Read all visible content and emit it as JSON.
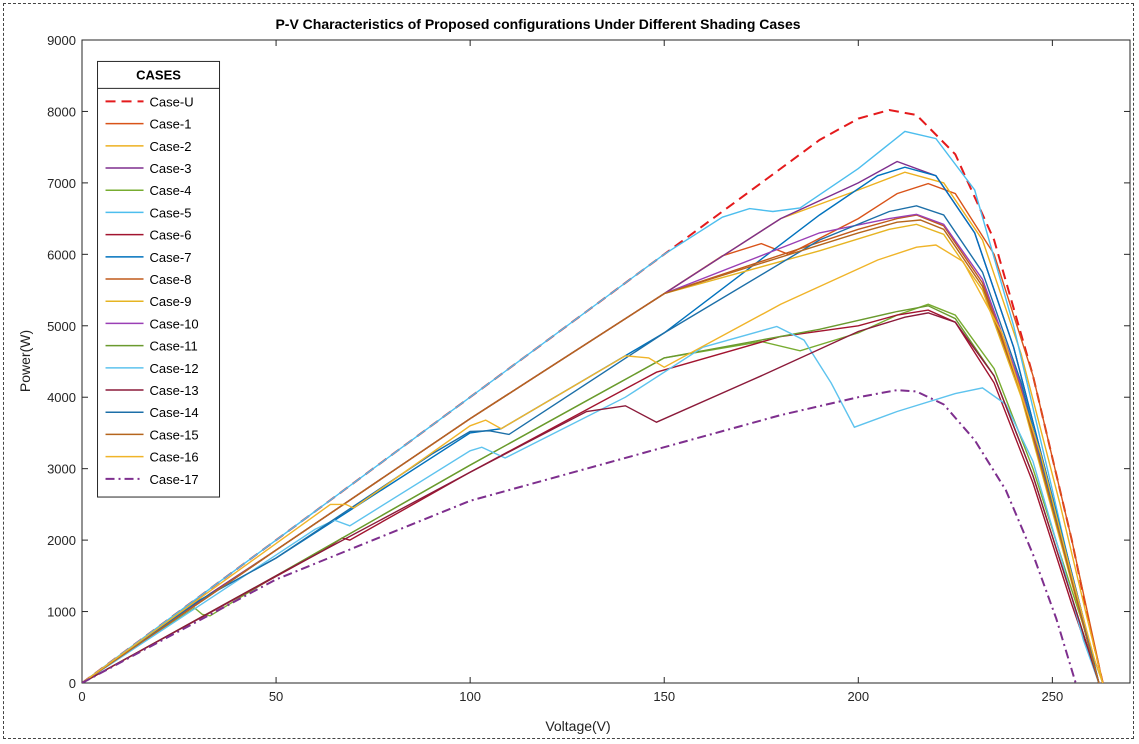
{
  "chart_data": {
    "type": "line",
    "title": "P-V Characteristics of Proposed configurations Under Different Shading Cases",
    "xlabel": "Voltage(V)",
    "ylabel": "Power(W)",
    "xlim": [
      0,
      270
    ],
    "ylim": [
      0,
      9000
    ],
    "x_ticks": [
      0,
      50,
      100,
      150,
      200,
      250
    ],
    "y_ticks": [
      0,
      1000,
      2000,
      3000,
      4000,
      5000,
      6000,
      7000,
      8000,
      9000
    ],
    "grid": false,
    "legend": {
      "title": "CASES",
      "placement": "top-left"
    },
    "series": [
      {
        "name": "Case-U",
        "color": "#e41a1c",
        "style": "dashed",
        "points": [
          [
            0,
            0
          ],
          [
            50,
            2000
          ],
          [
            100,
            4000
          ],
          [
            150,
            6000
          ],
          [
            175,
            7000
          ],
          [
            190,
            7600
          ],
          [
            200,
            7900
          ],
          [
            208,
            8020
          ],
          [
            215,
            7950
          ],
          [
            225,
            7400
          ],
          [
            235,
            6200
          ],
          [
            245,
            4300
          ],
          [
            255,
            2000
          ],
          [
            260,
            700
          ],
          [
            263,
            0
          ]
        ]
      },
      {
        "name": "Case-1",
        "color": "#d95319",
        "style": "solid",
        "points": [
          [
            0,
            0
          ],
          [
            30,
            1180
          ],
          [
            31,
            1150
          ],
          [
            50,
            1860
          ],
          [
            100,
            3700
          ],
          [
            150,
            5450
          ],
          [
            165,
            5980
          ],
          [
            175,
            6150
          ],
          [
            182,
            6000
          ],
          [
            200,
            6500
          ],
          [
            210,
            6850
          ],
          [
            218,
            6990
          ],
          [
            225,
            6850
          ],
          [
            235,
            6000
          ],
          [
            245,
            4300
          ],
          [
            255,
            2000
          ],
          [
            261,
            500
          ],
          [
            263,
            0
          ]
        ]
      },
      {
        "name": "Case-2",
        "color": "#edb120",
        "style": "solid",
        "points": [
          [
            0,
            0
          ],
          [
            33,
            1250
          ],
          [
            50,
            1860
          ],
          [
            100,
            3700
          ],
          [
            150,
            5450
          ],
          [
            180,
            6500
          ],
          [
            200,
            6900
          ],
          [
            212,
            7150
          ],
          [
            222,
            7000
          ],
          [
            232,
            6200
          ],
          [
            242,
            4600
          ],
          [
            252,
            2500
          ],
          [
            259,
            900
          ],
          [
            263,
            0
          ]
        ]
      },
      {
        "name": "Case-3",
        "color": "#7e2f8e",
        "style": "solid",
        "points": [
          [
            0,
            0
          ],
          [
            33,
            1250
          ],
          [
            50,
            1860
          ],
          [
            100,
            3700
          ],
          [
            150,
            5450
          ],
          [
            180,
            6500
          ],
          [
            200,
            7000
          ],
          [
            210,
            7300
          ],
          [
            220,
            7100
          ],
          [
            230,
            6300
          ],
          [
            240,
            4700
          ],
          [
            250,
            2600
          ],
          [
            258,
            900
          ],
          [
            262,
            0
          ]
        ]
      },
      {
        "name": "Case-4",
        "color": "#77ac30",
        "style": "solid",
        "points": [
          [
            0,
            0
          ],
          [
            29,
            1050
          ],
          [
            31,
            960
          ],
          [
            33,
            940
          ],
          [
            50,
            1500
          ],
          [
            100,
            3050
          ],
          [
            130,
            3950
          ],
          [
            150,
            4550
          ],
          [
            175,
            4780
          ],
          [
            185,
            4650
          ],
          [
            200,
            4900
          ],
          [
            210,
            5150
          ],
          [
            218,
            5300
          ],
          [
            225,
            5150
          ],
          [
            235,
            4400
          ],
          [
            245,
            3000
          ],
          [
            255,
            1300
          ],
          [
            261,
            300
          ],
          [
            263,
            0
          ]
        ]
      },
      {
        "name": "Case-5",
        "color": "#4dbeee",
        "style": "solid",
        "points": [
          [
            0,
            0
          ],
          [
            60,
            2400
          ],
          [
            100,
            4000
          ],
          [
            150,
            6000
          ],
          [
            165,
            6520
          ],
          [
            172,
            6640
          ],
          [
            178,
            6600
          ],
          [
            185,
            6650
          ],
          [
            200,
            7200
          ],
          [
            212,
            7720
          ],
          [
            220,
            7620
          ],
          [
            230,
            6900
          ],
          [
            240,
            5000
          ],
          [
            250,
            2700
          ],
          [
            258,
            800
          ],
          [
            262,
            0
          ]
        ]
      },
      {
        "name": "Case-6",
        "color": "#a2142f",
        "style": "solid",
        "points": [
          [
            0,
            0
          ],
          [
            62,
            1850
          ],
          [
            67,
            2030
          ],
          [
            69,
            2000
          ],
          [
            100,
            2950
          ],
          [
            148,
            4350
          ],
          [
            180,
            4850
          ],
          [
            200,
            5000
          ],
          [
            210,
            5150
          ],
          [
            218,
            5220
          ],
          [
            225,
            5050
          ],
          [
            235,
            4200
          ],
          [
            245,
            2800
          ],
          [
            255,
            1100
          ],
          [
            262,
            0
          ]
        ]
      },
      {
        "name": "Case-7",
        "color": "#0072bd",
        "style": "solid",
        "points": [
          [
            0,
            0
          ],
          [
            30,
            1150
          ],
          [
            50,
            1750
          ],
          [
            100,
            3500
          ],
          [
            108,
            3560
          ],
          [
            150,
            4900
          ],
          [
            190,
            6550
          ],
          [
            205,
            7100
          ],
          [
            212,
            7220
          ],
          [
            220,
            7100
          ],
          [
            230,
            6300
          ],
          [
            240,
            4700
          ],
          [
            250,
            2600
          ],
          [
            258,
            900
          ],
          [
            262,
            0
          ]
        ]
      },
      {
        "name": "Case-8",
        "color": "#c15a1b",
        "style": "solid",
        "points": [
          [
            0,
            0
          ],
          [
            50,
            1860
          ],
          [
            100,
            3700
          ],
          [
            150,
            5450
          ],
          [
            200,
            6350
          ],
          [
            210,
            6500
          ],
          [
            215,
            6550
          ],
          [
            222,
            6400
          ],
          [
            232,
            5600
          ],
          [
            242,
            4100
          ],
          [
            252,
            2100
          ],
          [
            259,
            600
          ],
          [
            262,
            0
          ]
        ]
      },
      {
        "name": "Case-9",
        "color": "#e6b422",
        "style": "solid",
        "points": [
          [
            0,
            0
          ],
          [
            50,
            1860
          ],
          [
            100,
            3700
          ],
          [
            150,
            5450
          ],
          [
            190,
            6050
          ],
          [
            208,
            6350
          ],
          [
            215,
            6420
          ],
          [
            222,
            6280
          ],
          [
            232,
            5500
          ],
          [
            242,
            4000
          ],
          [
            252,
            2000
          ],
          [
            259,
            600
          ],
          [
            262,
            0
          ]
        ]
      },
      {
        "name": "Case-10",
        "color": "#9a3fb5",
        "style": "solid",
        "points": [
          [
            0,
            0
          ],
          [
            50,
            1860
          ],
          [
            100,
            3700
          ],
          [
            150,
            5450
          ],
          [
            190,
            6300
          ],
          [
            208,
            6500
          ],
          [
            215,
            6560
          ],
          [
            222,
            6420
          ],
          [
            232,
            5650
          ],
          [
            242,
            4150
          ],
          [
            252,
            2100
          ],
          [
            259,
            600
          ],
          [
            262,
            0
          ]
        ]
      },
      {
        "name": "Case-11",
        "color": "#6a9a2e",
        "style": "solid",
        "points": [
          [
            0,
            0
          ],
          [
            50,
            1500
          ],
          [
            100,
            3050
          ],
          [
            130,
            3950
          ],
          [
            150,
            4550
          ],
          [
            190,
            4950
          ],
          [
            210,
            5200
          ],
          [
            218,
            5280
          ],
          [
            225,
            5100
          ],
          [
            235,
            4300
          ],
          [
            245,
            2900
          ],
          [
            255,
            1200
          ],
          [
            262,
            0
          ]
        ]
      },
      {
        "name": "Case-12",
        "color": "#5ec3ee",
        "style": "solid",
        "points": [
          [
            0,
            0
          ],
          [
            60,
            2150
          ],
          [
            65,
            2280
          ],
          [
            69,
            2200
          ],
          [
            100,
            3250
          ],
          [
            103,
            3300
          ],
          [
            109,
            3150
          ],
          [
            140,
            4000
          ],
          [
            160,
            4700
          ],
          [
            179,
            4990
          ],
          [
            186,
            4800
          ],
          [
            193,
            4200
          ],
          [
            199,
            3580
          ],
          [
            210,
            3800
          ],
          [
            225,
            4050
          ],
          [
            232,
            4130
          ],
          [
            238,
            3900
          ],
          [
            245,
            3100
          ],
          [
            252,
            1800
          ],
          [
            258,
            600
          ],
          [
            262,
            0
          ]
        ]
      },
      {
        "name": "Case-13",
        "color": "#8b1a3a",
        "style": "solid",
        "points": [
          [
            0,
            0
          ],
          [
            50,
            1500
          ],
          [
            100,
            2950
          ],
          [
            130,
            3800
          ],
          [
            140,
            3880
          ],
          [
            148,
            3650
          ],
          [
            175,
            4300
          ],
          [
            200,
            4920
          ],
          [
            212,
            5120
          ],
          [
            218,
            5180
          ],
          [
            225,
            5050
          ],
          [
            235,
            4300
          ],
          [
            245,
            2900
          ],
          [
            255,
            1200
          ],
          [
            262,
            0
          ]
        ]
      },
      {
        "name": "Case-14",
        "color": "#1c6fa8",
        "style": "solid",
        "points": [
          [
            0,
            0
          ],
          [
            30,
            1150
          ],
          [
            50,
            1750
          ],
          [
            90,
            3200
          ],
          [
            100,
            3520
          ],
          [
            105,
            3530
          ],
          [
            110,
            3480
          ],
          [
            150,
            4900
          ],
          [
            190,
            6200
          ],
          [
            208,
            6600
          ],
          [
            215,
            6680
          ],
          [
            222,
            6550
          ],
          [
            232,
            5750
          ],
          [
            242,
            4200
          ],
          [
            252,
            2100
          ],
          [
            259,
            600
          ],
          [
            262,
            0
          ]
        ]
      },
      {
        "name": "Case-15",
        "color": "#b5651d",
        "style": "solid",
        "points": [
          [
            0,
            0
          ],
          [
            50,
            1860
          ],
          [
            100,
            3700
          ],
          [
            150,
            5450
          ],
          [
            200,
            6300
          ],
          [
            210,
            6450
          ],
          [
            216,
            6480
          ],
          [
            222,
            6350
          ],
          [
            232,
            5550
          ],
          [
            242,
            4050
          ],
          [
            252,
            2050
          ],
          [
            259,
            600
          ],
          [
            262,
            0
          ]
        ]
      },
      {
        "name": "Case-16",
        "color": "#f0b429",
        "style": "solid",
        "points": [
          [
            0,
            0
          ],
          [
            64,
            2500
          ],
          [
            68,
            2500
          ],
          [
            70,
            2450
          ],
          [
            100,
            3600
          ],
          [
            104,
            3680
          ],
          [
            108,
            3560
          ],
          [
            140,
            4580
          ],
          [
            146,
            4550
          ],
          [
            150,
            4420
          ],
          [
            180,
            5300
          ],
          [
            205,
            5920
          ],
          [
            215,
            6100
          ],
          [
            220,
            6130
          ],
          [
            227,
            5900
          ],
          [
            237,
            4900
          ],
          [
            247,
            3200
          ],
          [
            255,
            1500
          ],
          [
            261,
            300
          ],
          [
            263,
            0
          ]
        ]
      },
      {
        "name": "Case-17",
        "color": "#7e2f8e",
        "style": "dashdot",
        "points": [
          [
            0,
            0
          ],
          [
            50,
            1450
          ],
          [
            100,
            2550
          ],
          [
            150,
            3300
          ],
          [
            180,
            3750
          ],
          [
            200,
            4000
          ],
          [
            210,
            4100
          ],
          [
            215,
            4080
          ],
          [
            222,
            3900
          ],
          [
            230,
            3400
          ],
          [
            238,
            2700
          ],
          [
            245,
            1800
          ],
          [
            251,
            900
          ],
          [
            256,
            0
          ]
        ]
      }
    ]
  }
}
